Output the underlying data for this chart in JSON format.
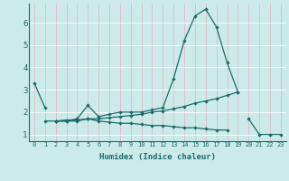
{
  "xlabel": "Humidex (Indice chaleur)",
  "bg_color": "#cceaea",
  "line_color": "#1a6b6b",
  "grid_color_v": "#e8b0b0",
  "grid_color_h": "#ffffff",
  "x": [
    0,
    1,
    2,
    3,
    4,
    5,
    6,
    7,
    8,
    9,
    10,
    11,
    12,
    13,
    14,
    15,
    16,
    17,
    18,
    19,
    20,
    21,
    22,
    23
  ],
  "line1": [
    3.3,
    2.2,
    null,
    null,
    null,
    null,
    null,
    null,
    null,
    null,
    null,
    null,
    null,
    null,
    null,
    null,
    null,
    null,
    null,
    null,
    null,
    null,
    null,
    null
  ],
  "line2": [
    null,
    null,
    1.6,
    1.6,
    1.7,
    2.3,
    1.8,
    1.9,
    2.0,
    2.0,
    2.0,
    2.1,
    2.2,
    3.5,
    5.2,
    6.3,
    6.6,
    5.8,
    4.2,
    2.9,
    null,
    null,
    null,
    null
  ],
  "line3": [
    null,
    1.6,
    1.6,
    1.6,
    1.6,
    1.7,
    1.6,
    1.55,
    1.5,
    1.5,
    1.45,
    1.4,
    1.4,
    1.35,
    1.3,
    1.3,
    1.25,
    1.2,
    1.2,
    null,
    1.7,
    1.0,
    1.0,
    1.0
  ],
  "line4": [
    null,
    null,
    1.6,
    1.65,
    1.65,
    1.7,
    1.7,
    1.75,
    1.8,
    1.85,
    1.9,
    2.0,
    2.05,
    2.15,
    2.25,
    2.4,
    2.5,
    2.6,
    2.75,
    2.9,
    null,
    null,
    null,
    null
  ],
  "xlim": [
    -0.5,
    23.5
  ],
  "ylim": [
    0.7,
    6.85
  ],
  "yticks": [
    1,
    2,
    3,
    4,
    5,
    6
  ],
  "xticks": [
    0,
    1,
    2,
    3,
    4,
    5,
    6,
    7,
    8,
    9,
    10,
    11,
    12,
    13,
    14,
    15,
    16,
    17,
    18,
    19,
    20,
    21,
    22,
    23
  ]
}
